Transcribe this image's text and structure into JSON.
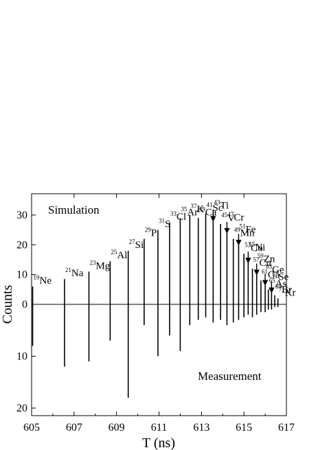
{
  "chart_data": {
    "type": "bar",
    "title": "",
    "xlabel": "T (ns)",
    "ylabel": "Counts",
    "xlim": [
      605,
      617
    ],
    "xticks": [
      "605",
      "607",
      "609",
      "611",
      "613",
      "615",
      "617"
    ],
    "simulation_yticks": [
      "0",
      "10",
      "20",
      "30"
    ],
    "measurement_yticks": [
      "10",
      "20"
    ],
    "ylim_simulation": [
      0,
      37
    ],
    "ylim_measurement": [
      0,
      22
    ],
    "panel_labels": {
      "top": "Simulation",
      "bottom": "Measurement"
    },
    "series": [
      {
        "name": "Simulation",
        "isotopes": [
          {
            "mass": "19",
            "element": "Ne",
            "x": 605.05,
            "value": 6
          },
          {
            "mass": "21",
            "element": "Na",
            "x": 606.55,
            "value": 8.5
          },
          {
            "mass": "23",
            "element": "Mg",
            "x": 607.7,
            "value": 11
          },
          {
            "mass": "25",
            "element": "Al",
            "x": 608.7,
            "value": 14.5
          },
          {
            "mass": "27",
            "element": "Si",
            "x": 609.55,
            "value": 18
          },
          {
            "mass": "29",
            "element": "P",
            "x": 610.3,
            "value": 22
          },
          {
            "mass": "31",
            "element": "S",
            "x": 610.95,
            "value": 25
          },
          {
            "mass": "33",
            "element": "Cl",
            "x": 611.5,
            "value": 27.5
          },
          {
            "mass": "35",
            "element": "Ar",
            "x": 612.0,
            "value": 29
          },
          {
            "mass": "37",
            "element": "K",
            "x": 612.45,
            "value": 30
          },
          {
            "mass": "39",
            "element": "Ca",
            "x": 612.85,
            "value": 29
          },
          {
            "mass": "41",
            "element": "Sc",
            "x": 613.2,
            "value": 30.5
          },
          {
            "mass": "43",
            "element": "Ti",
            "x": 613.55,
            "value": 28
          },
          {
            "mass": "45",
            "element": "V",
            "x": 613.9,
            "value": 27
          },
          {
            "mass": "47",
            "element": "Cr",
            "x": 614.2,
            "value": 24
          },
          {
            "mass": "49",
            "element": "Mn",
            "x": 614.5,
            "value": 22
          },
          {
            "mass": "51",
            "element": "Fe",
            "x": 614.75,
            "value": 20
          },
          {
            "mass": "53",
            "element": "Co",
            "x": 615.0,
            "value": 17
          },
          {
            "mass": "55",
            "element": "Ni",
            "x": 615.2,
            "value": 14
          },
          {
            "mass": "57",
            "element": "Cu",
            "x": 615.4,
            "value": 12
          },
          {
            "mass": "59",
            "element": "Zn",
            "x": 615.6,
            "value": 10
          },
          {
            "mass": "61",
            "element": "Ga",
            "x": 615.8,
            "value": 8
          },
          {
            "mass": "63",
            "element": "Ge",
            "x": 616.0,
            "value": 6.5
          },
          {
            "mass": "65",
            "element": "As",
            "x": 616.15,
            "value": 5
          },
          {
            "mass": "67",
            "element": "Se",
            "x": 616.3,
            "value": 4
          },
          {
            "mass": "69",
            "element": "Br",
            "x": 616.45,
            "value": 3
          },
          {
            "mass": "71",
            "element": "Kr",
            "x": 616.6,
            "value": 2
          }
        ]
      },
      {
        "name": "Measurement",
        "values": [
          8,
          12,
          11,
          7,
          18,
          4,
          10,
          6,
          9,
          4,
          3,
          2.5,
          3.5,
          3,
          4,
          3.5,
          3,
          2.5,
          2,
          2.5,
          2,
          1.5,
          1.5,
          1,
          1,
          0.5,
          0.5
        ]
      }
    ],
    "annotations": {
      "arrow_labels": [
        "Ti",
        "Cr",
        "Fe",
        "Ni",
        "Zn",
        "Ge",
        "Se"
      ]
    }
  }
}
